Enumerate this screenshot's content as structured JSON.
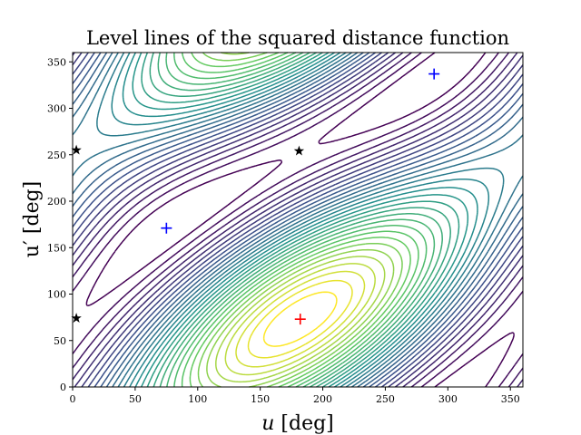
{
  "chart_data": {
    "type": "contour",
    "title": "Level lines of the squared distance function",
    "xlabel": "u [deg]",
    "ylabel": "u′ [deg]",
    "xlim": [
      0,
      360
    ],
    "ylim": [
      0,
      360
    ],
    "xticks": [
      0,
      50,
      100,
      150,
      200,
      250,
      300,
      350
    ],
    "yticks": [
      0,
      50,
      100,
      150,
      200,
      250,
      300,
      350
    ],
    "colormap": "viridis",
    "grid": false,
    "levels": 30,
    "markers": [
      {
        "type": "maximum",
        "symbol": "plus",
        "color": "#ff0000",
        "u": 182,
        "v": 73
      },
      {
        "type": "minimum",
        "symbol": "plus",
        "color": "#0000ff",
        "u": 75,
        "v": 171
      },
      {
        "type": "minimum",
        "symbol": "plus",
        "color": "#0000ff",
        "u": 289,
        "v": 337
      },
      {
        "type": "saddle",
        "symbol": "star",
        "color": "#000000",
        "u": 3,
        "v": 255
      },
      {
        "type": "saddle",
        "symbol": "star",
        "color": "#000000",
        "u": 3,
        "v": 74
      },
      {
        "type": "saddle",
        "symbol": "star",
        "color": "#000000",
        "u": 181,
        "v": 254
      }
    ]
  }
}
